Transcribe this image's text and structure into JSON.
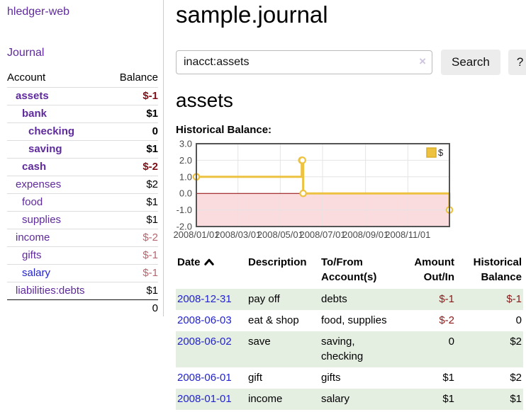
{
  "colors": {
    "purple": "#5f2a9d",
    "blue": "#2323cc",
    "neg_strong": "#7d1016",
    "neg_light": "#b3676e",
    "neg_table": "#8b1a1a",
    "row_green": "#e4efe2",
    "gold": "#edc240",
    "pink_region": "#fadcdf",
    "zero_line": "#8b0000",
    "grid": "#e4e4e4",
    "chart_border": "#545454",
    "tick_label": "#4a4a4a"
  },
  "app": {
    "title": "hledger-web"
  },
  "sidebar": {
    "journal_label": "Journal",
    "headers": {
      "account": "Account",
      "balance": "Balance"
    },
    "accounts": [
      {
        "name": "assets",
        "indent": 1,
        "bold": true,
        "balance": "$-1",
        "negative": true
      },
      {
        "name": "bank",
        "indent": 2,
        "bold": true,
        "balance": "$1"
      },
      {
        "name": "checking",
        "indent": 3,
        "bold": true,
        "balance": "0"
      },
      {
        "name": "saving",
        "indent": 3,
        "bold": true,
        "balance": "$1"
      },
      {
        "name": "cash",
        "indent": 2,
        "bold": true,
        "balance": "$-2",
        "negative": true
      },
      {
        "name": "expenses",
        "indent": 1,
        "bold": false,
        "balance": "$2"
      },
      {
        "name": "food",
        "indent": 2,
        "bold": false,
        "balance": "$1"
      },
      {
        "name": "supplies",
        "indent": 2,
        "bold": false,
        "balance": "$1"
      },
      {
        "name": "income",
        "indent": 1,
        "bold": false,
        "balance": "$-2",
        "negative": true
      },
      {
        "name": "gifts",
        "indent": 2,
        "bold": false,
        "balance": "$-1",
        "negative": true
      },
      {
        "name": "salary",
        "indent": 2,
        "bold": false,
        "balance": "$-1",
        "negative": true,
        "link_color": "blue"
      },
      {
        "name": "liabilities:debts",
        "indent": 1,
        "bold": false,
        "balance": "$1"
      }
    ],
    "total": "0"
  },
  "main": {
    "title": "sample.journal",
    "search": {
      "value": "inacct:assets",
      "clear_icon": "×",
      "search_button": "Search",
      "help_button": "?"
    },
    "account_heading": "assets",
    "chart_heading": "Historical Balance:"
  },
  "chart_data": {
    "type": "line",
    "step": true,
    "title": "Historical Balance:",
    "series": [
      {
        "name": "$",
        "x": [
          "2008-01-01",
          "2008-06-01",
          "2008-06-02",
          "2008-06-03",
          "2008-12-31"
        ],
        "y": [
          1,
          2,
          2,
          0,
          -1
        ]
      }
    ],
    "xlim": [
      "2008-01-01",
      "2008-12-31"
    ],
    "ylim": [
      -2,
      3
    ],
    "yticks": [
      3.0,
      2.0,
      1.0,
      0.0,
      -1.0,
      -2.0
    ],
    "xticks": [
      "2008/01/01",
      "2008/03/01",
      "2008/05/01",
      "2008/07/01",
      "2008/09/01",
      "2008/11/01"
    ],
    "legend": {
      "label": "$",
      "position": "top-right"
    },
    "grid": true,
    "negative_region_shaded": true
  },
  "register": {
    "headers": [
      "Date",
      "Description",
      "To/From Account(s)",
      "Amount Out/In",
      "Historical Balance"
    ],
    "sorted_by": "Date ascending",
    "rows": [
      {
        "date": "2008-12-31",
        "description": "pay off",
        "accounts": "debts",
        "amount": "$-1",
        "amount_negative": true,
        "balance": "$-1",
        "balance_negative": true
      },
      {
        "date": "2008-06-03",
        "description": "eat & shop",
        "accounts": "food, supplies",
        "amount": "$-2",
        "amount_negative": true,
        "balance": "0",
        "balance_negative": false
      },
      {
        "date": "2008-06-02",
        "description": "save",
        "accounts": "saving, checking",
        "amount": "0",
        "amount_negative": false,
        "balance": "$2",
        "balance_negative": false
      },
      {
        "date": "2008-06-01",
        "description": "gift",
        "accounts": "gifts",
        "amount": "$1",
        "amount_negative": false,
        "balance": "$2",
        "balance_negative": false
      },
      {
        "date": "2008-01-01",
        "description": "income",
        "accounts": "salary",
        "amount": "$1",
        "amount_negative": false,
        "balance": "$1",
        "balance_negative": false
      }
    ]
  }
}
